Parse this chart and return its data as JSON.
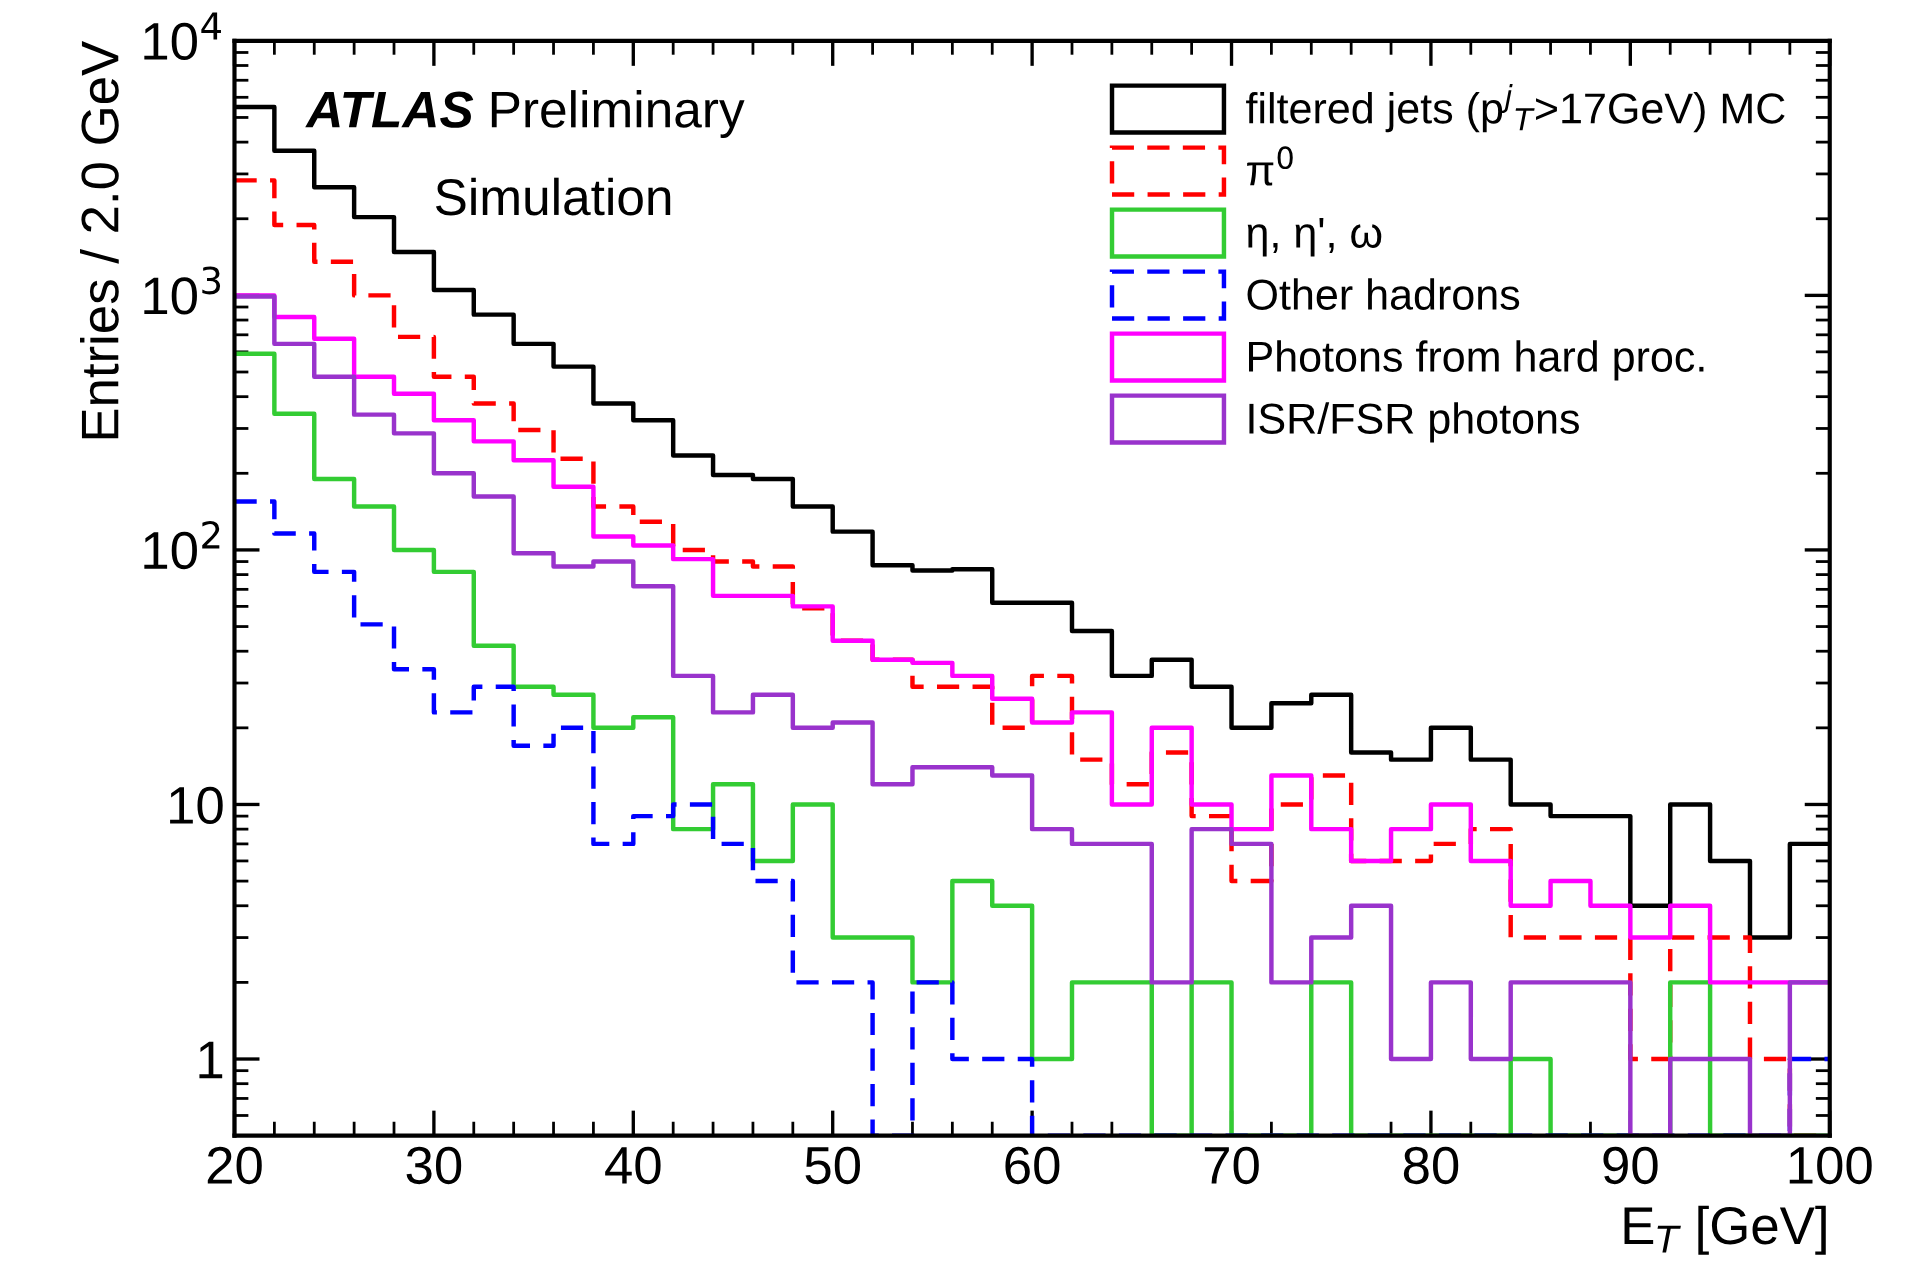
{
  "chart_data": {
    "type": "histogram",
    "xlabel": "E$_{T}$ [GeV]",
    "ylabel": "Entries / 2.0 GeV",
    "annotations": [
      "ATLAS",
      "Preliminary",
      "Simulation"
    ],
    "bins": [
      20,
      22,
      24,
      26,
      28,
      30,
      32,
      34,
      36,
      38,
      40,
      42,
      44,
      46,
      48,
      50,
      52,
      54,
      56,
      58,
      60,
      62,
      64,
      66,
      68,
      70,
      72,
      74,
      76,
      78,
      80,
      82,
      84,
      86,
      88,
      90,
      92,
      94,
      96,
      98,
      100
    ],
    "series": [
      {
        "name": "filtered jets (p$^{j}$$_{T}$>17GeV) MC",
        "color": "#000000",
        "line_style": "solid",
        "values": [
          5500,
          3700,
          2660,
          2030,
          1480,
          1050,
          840,
          645,
          525,
          376,
          323,
          235,
          197,
          190,
          148,
          118,
          87,
          83,
          84,
          62,
          62,
          48,
          32,
          37,
          29,
          20,
          25,
          27,
          16,
          15,
          20,
          15,
          10,
          9,
          9,
          4,
          10,
          6,
          3,
          7
        ]
      },
      {
        "name": "π$^{0}$",
        "color": "#ff0000",
        "line_style": "dashed",
        "values": [
          2830,
          1890,
          1355,
          1000,
          687,
          479,
          376,
          296,
          228,
          148,
          129,
          100,
          90,
          86,
          59,
          44,
          37,
          29,
          29,
          20,
          32,
          15,
          12,
          16,
          9,
          5,
          10,
          13,
          6,
          6,
          7,
          8,
          3,
          3,
          3,
          1,
          3,
          3,
          1,
          null
        ]
      },
      {
        "name": "η, η', ω",
        "color": "#33cc33",
        "line_style": "solid",
        "values": [
          590,
          343,
          190,
          148,
          100,
          82,
          42,
          29,
          27,
          20,
          22,
          8,
          12,
          6,
          10,
          3,
          3,
          2,
          5,
          4,
          1,
          2,
          2,
          null,
          2,
          null,
          null,
          2,
          null,
          null,
          null,
          null,
          1,
          null,
          null,
          null,
          2,
          null,
          null,
          null
        ]
      },
      {
        "name": "Other hadrons",
        "color": "#0000ff",
        "line_style": "dashed",
        "values": [
          155,
          116,
          82,
          51,
          34,
          23,
          29,
          17,
          20,
          7,
          9,
          10,
          7,
          5,
          2,
          2,
          null,
          2,
          1,
          1,
          null,
          null,
          null,
          null,
          null,
          null,
          null,
          null,
          null,
          null,
          null,
          null,
          null,
          null,
          null,
          null,
          null,
          null,
          null,
          1
        ]
      },
      {
        "name": "Photons from hard proc.",
        "color": "#ff00ff",
        "line_style": "solid",
        "values": [
          1000,
          822,
          675,
          479,
          411,
          323,
          267,
          225,
          177,
          113,
          104,
          92,
          66,
          66,
          60,
          44,
          37,
          36,
          32,
          26,
          21,
          23,
          10,
          20,
          10,
          8,
          13,
          8,
          6,
          8,
          10,
          6,
          4,
          5,
          4,
          3,
          4,
          2,
          2,
          2
        ]
      },
      {
        "name": "ISR/FSR photons",
        "color": "#9933cc",
        "line_style": "solid",
        "values": [
          990,
          645,
          479,
          340,
          287,
          200,
          162,
          97,
          86,
          90,
          72,
          32,
          23,
          27,
          20,
          21,
          12,
          14,
          14,
          13,
          8,
          7,
          7,
          2,
          8,
          7,
          2,
          3,
          4,
          1,
          2,
          1,
          2,
          2,
          2,
          null,
          1,
          1,
          null,
          2
        ]
      }
    ],
    "xlim": [
      20,
      100
    ],
    "ylim": [
      0.5,
      10000
    ],
    "log": "y",
    "xticks": [
      20,
      30,
      40,
      50,
      60,
      70,
      80,
      90,
      100
    ],
    "yticks": [
      1,
      10,
      {
        "value": 100,
        "label": "10$^{2}$"
      },
      {
        "value": 1000,
        "label": "10$^{3}$"
      },
      {
        "value": 10000,
        "label": "10$^{4}$"
      }
    ],
    "grid": false,
    "legend": "top right"
  }
}
